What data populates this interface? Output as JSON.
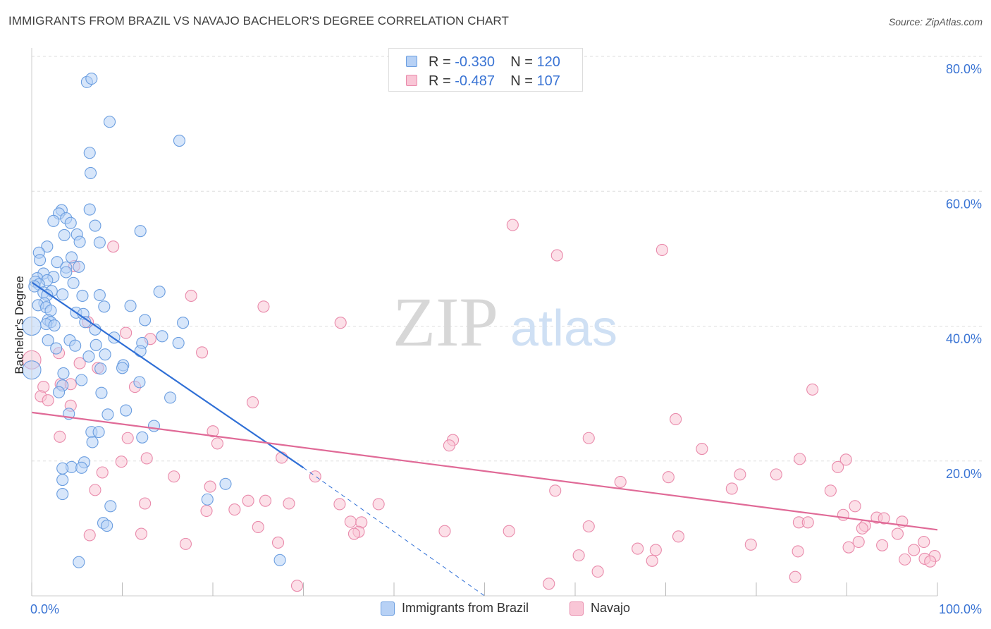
{
  "header": {
    "title": "IMMIGRANTS FROM BRAZIL VS NAVAJO BACHELOR'S DEGREE CORRELATION CHART",
    "source": "Source: ZipAtlas.com"
  },
  "stats_legend": [
    {
      "r_label": "R =",
      "r_value": "-0.330",
      "n_label": "N =",
      "n_value": "120"
    },
    {
      "r_label": "R =",
      "r_value": "-0.487",
      "n_label": "N =",
      "n_value": "107"
    }
  ],
  "watermark": {
    "zip": "ZIP",
    "atlas": "atlas"
  },
  "colors": {
    "series1_fill": "#b7d1f5",
    "series1_stroke": "#6b9ee0",
    "series1_line": "#2f6fd6",
    "series2_fill": "#f9c6d6",
    "series2_stroke": "#e98aab",
    "series2_line": "#e06a97",
    "axis_label": "#3a74d4",
    "grid": "#dddddd"
  },
  "chart_data": {
    "type": "scatter",
    "title": "IMMIGRANTS FROM BRAZIL VS NAVAJO BACHELOR'S DEGREE CORRELATION CHART",
    "xlabel": "",
    "ylabel": "Bachelor's Degree",
    "xlim": [
      0,
      100
    ],
    "ylim": [
      0,
      80
    ],
    "x_tick_labels": [
      "0.0%",
      "100.0%"
    ],
    "y_tick_labels": [
      "20.0%",
      "40.0%",
      "60.0%",
      "80.0%"
    ],
    "y_ticks": [
      20,
      40,
      60,
      80
    ],
    "grid": true,
    "legend_position": "bottom",
    "series": [
      {
        "name": "Immigrants from Brazil",
        "r": -0.33,
        "n": 120,
        "trend": {
          "x0": 0,
          "y0": 46.5,
          "x1": 30,
          "y1": 19.0,
          "dashed_to": [
            50,
            0
          ]
        },
        "points": [
          [
            6.1,
            76.2
          ],
          [
            6.6,
            76.7
          ],
          [
            8.6,
            70.3
          ],
          [
            16.3,
            67.5
          ],
          [
            6.4,
            65.7
          ],
          [
            6.5,
            62.7
          ],
          [
            6.4,
            57.3
          ],
          [
            3.3,
            57.2
          ],
          [
            3.0,
            56.7
          ],
          [
            3.8,
            56.0
          ],
          [
            2.4,
            55.6
          ],
          [
            4.3,
            55.3
          ],
          [
            7.0,
            54.9
          ],
          [
            12.0,
            54.1
          ],
          [
            5.0,
            53.6
          ],
          [
            3.6,
            53.5
          ],
          [
            5.3,
            52.5
          ],
          [
            7.5,
            52.4
          ],
          [
            1.7,
            51.8
          ],
          [
            0.8,
            50.9
          ],
          [
            4.4,
            50.2
          ],
          [
            0.9,
            49.8
          ],
          [
            2.8,
            49.5
          ],
          [
            5.2,
            48.8
          ],
          [
            3.8,
            48.7
          ],
          [
            3.8,
            48.0
          ],
          [
            1.3,
            47.8
          ],
          [
            2.4,
            47.3
          ],
          [
            0.6,
            47.1
          ],
          [
            1.7,
            46.8
          ],
          [
            0.4,
            46.6
          ],
          [
            4.6,
            46.4
          ],
          [
            0.8,
            46.2
          ],
          [
            0.3,
            45.9
          ],
          [
            1.3,
            45.0
          ],
          [
            2.2,
            45.2
          ],
          [
            14.1,
            45.1
          ],
          [
            7.5,
            44.6
          ],
          [
            1.7,
            44.6
          ],
          [
            3.4,
            44.7
          ],
          [
            5.6,
            44.5
          ],
          [
            1.4,
            43.4
          ],
          [
            0.7,
            43.1
          ],
          [
            8.0,
            42.9
          ],
          [
            10.9,
            43.0
          ],
          [
            1.6,
            42.8
          ],
          [
            2.1,
            42.3
          ],
          [
            4.9,
            42.0
          ],
          [
            5.7,
            41.8
          ],
          [
            12.5,
            40.9
          ],
          [
            1.8,
            40.9
          ],
          [
            2.1,
            40.6
          ],
          [
            5.9,
            40.6
          ],
          [
            16.7,
            40.5
          ],
          [
            1.6,
            40.3
          ],
          [
            2.5,
            40.1
          ],
          [
            0.0,
            40.0
          ],
          [
            7.0,
            39.5
          ],
          [
            14.4,
            38.5
          ],
          [
            9.1,
            38.3
          ],
          [
            4.2,
            37.9
          ],
          [
            1.8,
            37.9
          ],
          [
            12.2,
            37.5
          ],
          [
            16.2,
            37.5
          ],
          [
            4.8,
            37.1
          ],
          [
            7.1,
            37.2
          ],
          [
            2.7,
            36.7
          ],
          [
            12.0,
            36.3
          ],
          [
            8.1,
            35.8
          ],
          [
            6.3,
            35.5
          ],
          [
            10.1,
            34.2
          ],
          [
            10.0,
            33.8
          ],
          [
            7.6,
            33.7
          ],
          [
            0.0,
            33.5
          ],
          [
            3.5,
            33.0
          ],
          [
            5.5,
            32.0
          ],
          [
            11.9,
            31.7
          ],
          [
            3.4,
            31.2
          ],
          [
            3.0,
            30.2
          ],
          [
            7.7,
            30.1
          ],
          [
            15.3,
            29.4
          ],
          [
            10.4,
            27.5
          ],
          [
            4.1,
            27.0
          ],
          [
            8.4,
            26.9
          ],
          [
            13.5,
            25.2
          ],
          [
            6.6,
            24.3
          ],
          [
            7.4,
            24.3
          ],
          [
            12.2,
            23.5
          ],
          [
            6.7,
            22.8
          ],
          [
            5.8,
            19.8
          ],
          [
            4.4,
            19.1
          ],
          [
            5.5,
            19.0
          ],
          [
            3.4,
            18.9
          ],
          [
            3.4,
            17.2
          ],
          [
            21.4,
            16.6
          ],
          [
            3.4,
            15.1
          ],
          [
            19.4,
            14.3
          ],
          [
            8.7,
            13.3
          ],
          [
            7.9,
            10.8
          ],
          [
            8.3,
            10.4
          ],
          [
            27.4,
            5.3
          ],
          [
            5.2,
            5.0
          ]
        ]
      },
      {
        "name": "Navajo",
        "r": -0.487,
        "n": 107,
        "trend": {
          "x0": 0,
          "y0": 27.2,
          "x1": 100,
          "y1": 9.8
        },
        "points": [
          [
            53.1,
            55.0
          ],
          [
            69.6,
            51.3
          ],
          [
            58.0,
            50.5
          ],
          [
            9.0,
            51.8
          ],
          [
            4.7,
            48.9
          ],
          [
            17.6,
            44.5
          ],
          [
            25.6,
            42.9
          ],
          [
            34.1,
            40.5
          ],
          [
            6.2,
            40.6
          ],
          [
            0.0,
            35.0
          ],
          [
            10.4,
            39.0
          ],
          [
            13.1,
            38.1
          ],
          [
            18.8,
            36.1
          ],
          [
            3.0,
            36.0
          ],
          [
            5.3,
            34.5
          ],
          [
            7.3,
            33.8
          ],
          [
            1.3,
            31.0
          ],
          [
            3.2,
            31.4
          ],
          [
            4.3,
            31.4
          ],
          [
            11.4,
            31.0
          ],
          [
            86.2,
            30.6
          ],
          [
            1.0,
            29.6
          ],
          [
            1.8,
            29.0
          ],
          [
            24.4,
            28.7
          ],
          [
            4.3,
            28.2
          ],
          [
            71.1,
            26.2
          ],
          [
            20.0,
            24.4
          ],
          [
            3.1,
            23.6
          ],
          [
            10.6,
            23.4
          ],
          [
            61.5,
            23.4
          ],
          [
            46.5,
            23.1
          ],
          [
            46.1,
            22.3
          ],
          [
            20.5,
            22.6
          ],
          [
            74.0,
            21.8
          ],
          [
            27.6,
            20.5
          ],
          [
            84.8,
            20.3
          ],
          [
            12.7,
            20.4
          ],
          [
            89.9,
            20.2
          ],
          [
            9.9,
            19.9
          ],
          [
            89.0,
            19.1
          ],
          [
            7.8,
            18.3
          ],
          [
            31.3,
            17.7
          ],
          [
            78.2,
            18.0
          ],
          [
            82.2,
            18.0
          ],
          [
            70.3,
            17.6
          ],
          [
            15.7,
            17.7
          ],
          [
            65.0,
            16.9
          ],
          [
            19.7,
            16.2
          ],
          [
            77.3,
            15.9
          ],
          [
            57.8,
            15.6
          ],
          [
            7.0,
            15.7
          ],
          [
            88.2,
            15.6
          ],
          [
            25.8,
            14.1
          ],
          [
            23.9,
            14.1
          ],
          [
            34.0,
            13.6
          ],
          [
            12.5,
            13.7
          ],
          [
            28.4,
            13.7
          ],
          [
            38.3,
            13.6
          ],
          [
            90.9,
            13.3
          ],
          [
            22.4,
            12.8
          ],
          [
            19.3,
            12.6
          ],
          [
            89.6,
            12.0
          ],
          [
            93.3,
            11.6
          ],
          [
            94.1,
            11.5
          ],
          [
            96.1,
            11.0
          ],
          [
            35.2,
            11.0
          ],
          [
            36.4,
            10.9
          ],
          [
            84.7,
            10.9
          ],
          [
            85.7,
            10.9
          ],
          [
            92.0,
            10.4
          ],
          [
            61.5,
            10.3
          ],
          [
            91.7,
            10.0
          ],
          [
            25.0,
            10.2
          ],
          [
            36.1,
            9.5
          ],
          [
            45.6,
            9.6
          ],
          [
            35.6,
            9.2
          ],
          [
            52.7,
            9.6
          ],
          [
            12.1,
            9.2
          ],
          [
            6.4,
            9.0
          ],
          [
            71.4,
            8.8
          ],
          [
            95.6,
            9.2
          ],
          [
            91.3,
            8.0
          ],
          [
            98.5,
            8.0
          ],
          [
            79.4,
            7.6
          ],
          [
            17.0,
            7.7
          ],
          [
            27.2,
            7.9
          ],
          [
            93.9,
            7.5
          ],
          [
            90.2,
            7.2
          ],
          [
            66.9,
            7.0
          ],
          [
            68.9,
            6.8
          ],
          [
            84.6,
            6.6
          ],
          [
            97.4,
            6.8
          ],
          [
            60.4,
            6.0
          ],
          [
            99.7,
            5.9
          ],
          [
            98.6,
            5.5
          ],
          [
            96.4,
            5.4
          ],
          [
            99.2,
            5.1
          ],
          [
            68.5,
            5.2
          ],
          [
            62.5,
            3.6
          ],
          [
            84.3,
            2.8
          ],
          [
            29.3,
            1.5
          ],
          [
            57.1,
            1.8
          ]
        ]
      }
    ]
  },
  "bottom_legend": [
    "Immigrants from Brazil",
    "Navajo"
  ]
}
